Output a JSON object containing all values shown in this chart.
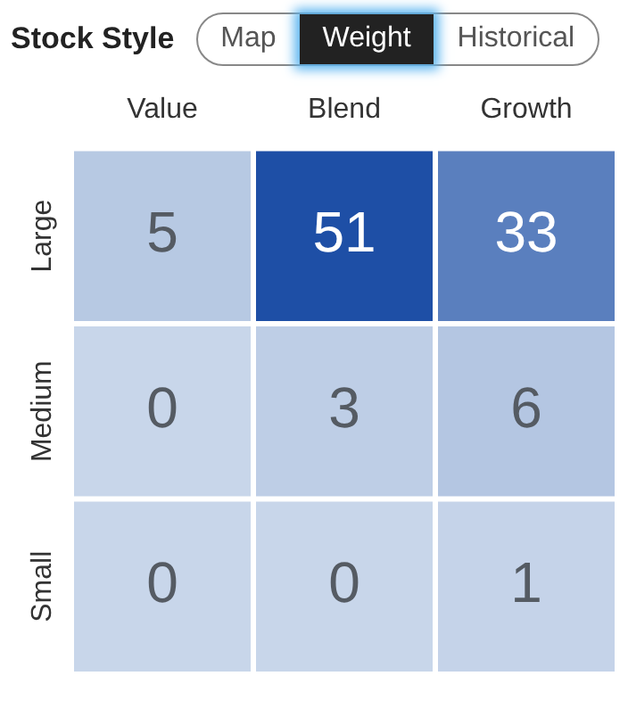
{
  "chart_data": {
    "type": "heatmap",
    "title": "Stock Style",
    "annotations": [
      "Map",
      "Weight",
      "Historical"
    ],
    "categories": [
      "Value",
      "Blend",
      "Growth"
    ],
    "y_categories": [
      "Large",
      "Medium",
      "Small"
    ],
    "data_labels": true,
    "cells": [
      [
        5,
        51,
        33
      ],
      [
        0,
        3,
        6
      ],
      [
        0,
        0,
        1
      ]
    ]
  }
}
